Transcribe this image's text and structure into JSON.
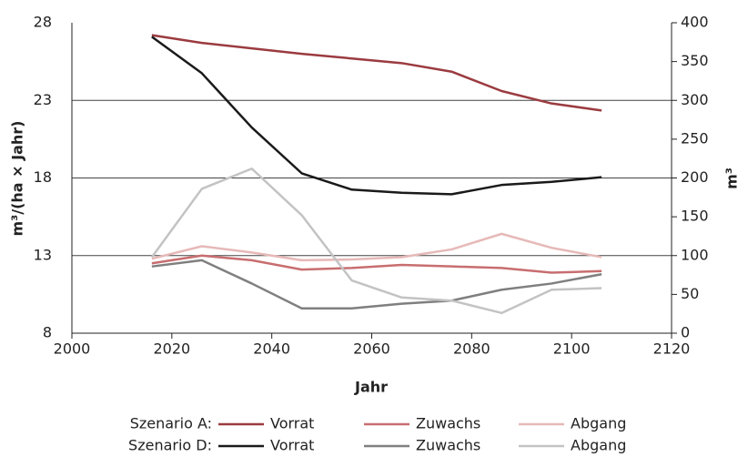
{
  "chart_data": {
    "type": "line",
    "x": [
      2016,
      2026,
      2036,
      2046,
      2056,
      2066,
      2076,
      2086,
      2096,
      2106
    ],
    "xlim": [
      2000,
      2120
    ],
    "xticks": [
      2000,
      2020,
      2040,
      2060,
      2080,
      2100,
      2120
    ],
    "ylim": [
      8,
      28
    ],
    "yticks": [
      8,
      13,
      18,
      23,
      28
    ],
    "y2lim": [
      0,
      400
    ],
    "y2ticks": [
      0,
      50,
      100,
      150,
      200,
      250,
      300,
      350,
      400
    ],
    "xlabel": "Jahr",
    "ylabel": "m³/(ha × Jahr)",
    "y2label": "m³",
    "grid": true,
    "legend_rows": [
      "Szenario A:",
      "Szenario D:"
    ],
    "series": [
      {
        "name": "Vorrat",
        "group": 0,
        "color": "#9b3b40",
        "axis": "y2",
        "values": [
          384,
          374,
          367,
          360,
          354,
          348,
          337,
          312,
          296,
          287
        ]
      },
      {
        "name": "Zuwachs",
        "group": 0,
        "color": "#c86e70",
        "values": [
          12.5,
          13.0,
          12.7,
          12.1,
          12.2,
          12.4,
          12.3,
          12.2,
          11.9,
          12.0
        ]
      },
      {
        "name": "Abgang",
        "group": 0,
        "color": "#e6b9b8",
        "values": [
          12.8,
          13.6,
          13.2,
          12.7,
          12.75,
          12.9,
          13.4,
          14.4,
          13.5,
          12.9
        ]
      },
      {
        "name": "Vorrat",
        "group": 1,
        "color": "#1a1a1a",
        "axis": "y2",
        "values": [
          382,
          335,
          265,
          206,
          185,
          181,
          179,
          191,
          195,
          201
        ]
      },
      {
        "name": "Zuwachs",
        "group": 1,
        "color": "#7f7f7f",
        "values": [
          12.3,
          12.7,
          11.2,
          9.6,
          9.6,
          9.9,
          10.1,
          10.8,
          11.2,
          11.8
        ]
      },
      {
        "name": "Abgang",
        "group": 1,
        "color": "#c3c3c3",
        "values": [
          12.9,
          17.3,
          18.6,
          15.6,
          11.4,
          10.3,
          10.1,
          9.3,
          10.8,
          10.9
        ]
      }
    ]
  }
}
